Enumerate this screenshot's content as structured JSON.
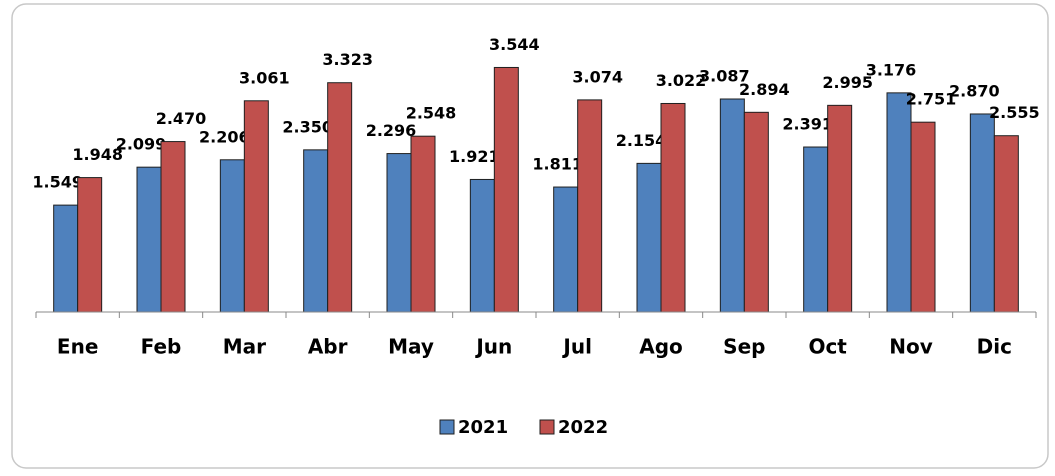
{
  "chart_data": {
    "type": "bar",
    "categories": [
      "Ene",
      "Feb",
      "Mar",
      "Abr",
      "May",
      "Jun",
      "Jul",
      "Ago",
      "Sep",
      "Oct",
      "Nov",
      "Dic"
    ],
    "series": [
      {
        "name": "2021",
        "color": "#4f81bd",
        "values": [
          1.549,
          2.099,
          2.206,
          2.35,
          2.296,
          1.921,
          1.811,
          2.154,
          3.087,
          2.391,
          3.176,
          2.87
        ],
        "value_labels": [
          "1.549",
          "2.099",
          "2.206",
          "2.350",
          "2.296",
          "1.921",
          "1.811",
          "2.154",
          "3.087",
          "2.391",
          "3.176",
          "2.870"
        ]
      },
      {
        "name": "2022",
        "color": "#c0504d",
        "values": [
          1.948,
          2.47,
          3.061,
          3.323,
          2.548,
          3.544,
          3.074,
          3.022,
          2.894,
          2.995,
          2.751,
          2.555
        ],
        "value_labels": [
          "1.948",
          "2.470",
          "3.061",
          "3.323",
          "2.548",
          "3.544",
          "3.074",
          "3.022",
          "2.894",
          "2.995",
          "2.751",
          "2.555"
        ]
      }
    ],
    "ylim": [
      0,
      4
    ],
    "legend": "bottom"
  }
}
